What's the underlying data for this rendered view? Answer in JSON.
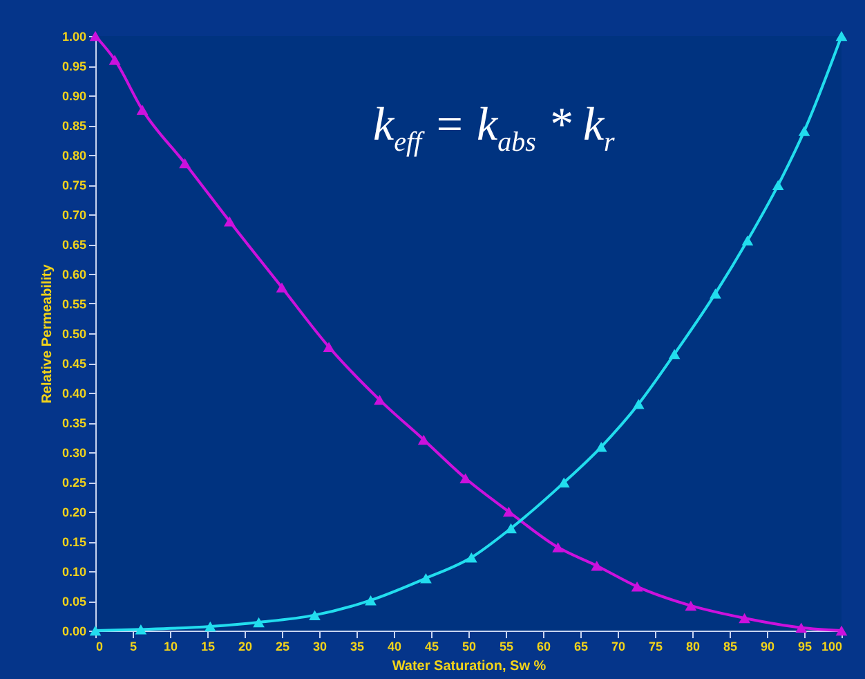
{
  "chart_data": {
    "type": "line",
    "xlabel": "Water Saturation, Sw %",
    "ylabel": "Relative Permeability",
    "annotations": [
      "k$_{eff}$ = k$_{abs}$ * k$_{r}$"
    ],
    "xlim": [
      0,
      100
    ],
    "xticks": [
      0,
      5,
      10,
      15,
      20,
      25,
      30,
      35,
      40,
      45,
      50,
      55,
      60,
      65,
      70,
      75,
      80,
      85,
      90,
      95,
      100
    ],
    "ylim": [
      0,
      1
    ],
    "yticks": [
      {
        "value": 0,
        "label": "0.00"
      },
      {
        "value": 0.05,
        "label": "0.05"
      },
      {
        "value": 0.1,
        "label": "0.10"
      },
      {
        "value": 0.15,
        "label": "0.15"
      },
      {
        "value": 0.2,
        "label": "0.20"
      },
      {
        "value": 0.25,
        "label": "0.25"
      },
      {
        "value": 0.3,
        "label": "0.30"
      },
      {
        "value": 0.35,
        "label": "0.35"
      },
      {
        "value": 0.4,
        "label": "0.40"
      },
      {
        "value": 0.45,
        "label": "0.45"
      },
      {
        "value": 0.5,
        "label": "0.50"
      },
      {
        "value": 0.55,
        "label": "0.55"
      },
      {
        "value": 0.6,
        "label": "0.60"
      },
      {
        "value": 0.65,
        "label": "0.65"
      },
      {
        "value": 0.7,
        "label": "0.70"
      },
      {
        "value": 0.75,
        "label": "0.75"
      },
      {
        "value": 0.8,
        "label": "0.80"
      },
      {
        "value": 0.85,
        "label": "0.85"
      },
      {
        "value": 0.9,
        "label": "0.90"
      },
      {
        "value": 0.95,
        "label": "0.95"
      },
      {
        "value": 1,
        "label": "1.00"
      }
    ],
    "grid": false,
    "marker": "triangle",
    "line_style": "solid",
    "series": [
      {
        "color": "#cc11dd",
        "x": [
          0,
          2.6,
          6.3,
          12,
          18,
          25,
          31.3,
          38.1,
          44,
          49.6,
          55.4,
          62,
          67.2,
          72.6,
          79.8,
          87,
          94.6,
          100
        ],
        "values": [
          1,
          0.96,
          0.876,
          0.786,
          0.688,
          0.577,
          0.477,
          0.388,
          0.321,
          0.256,
          0.2,
          0.14,
          0.109,
          0.074,
          0.042,
          0.021,
          0.005,
          0
        ]
      },
      {
        "color": "#22ddee",
        "x": [
          0,
          6.1,
          15.4,
          21.9,
          29.4,
          36.9,
          44.3,
          50.4,
          55.7,
          62.8,
          67.8,
          72.8,
          77.6,
          83.1,
          87.4,
          91.5,
          95,
          100
        ],
        "values": [
          0,
          0.002,
          0.007,
          0.014,
          0.026,
          0.051,
          0.088,
          0.123,
          0.172,
          0.249,
          0.309,
          0.381,
          0.465,
          0.567,
          0.656,
          0.749,
          0.84,
          1
        ]
      }
    ]
  }
}
